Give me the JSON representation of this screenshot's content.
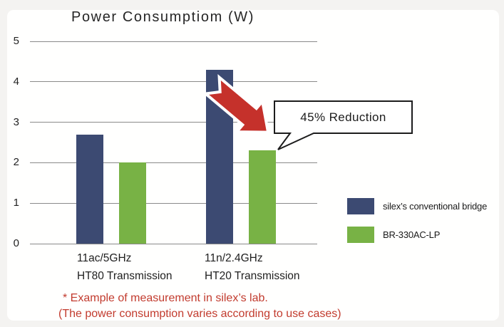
{
  "chart_data": {
    "type": "bar",
    "title": "Power Consumptiom (W)",
    "xlabel": "",
    "ylabel": "",
    "ylim": [
      0,
      5
    ],
    "yticks": [
      5,
      4,
      3,
      2,
      1,
      0
    ],
    "grid": true,
    "legend_position": "right",
    "categories": [
      {
        "line1": "11ac/5GHz",
        "line2": "HT80 Transmission"
      },
      {
        "line1": "11n/2.4GHz",
        "line2": "HT20 Transmission"
      }
    ],
    "series": [
      {
        "name": "silex’s conventional bridge",
        "color": "#3c4a72",
        "values": [
          2.7,
          4.3
        ]
      },
      {
        "name": "BR-330AC-LP",
        "color": "#78b245",
        "values": [
          2.0,
          2.3
        ]
      }
    ]
  },
  "annotation": {
    "callout_text": "45% Reduction",
    "arrow_color": "#c5312b",
    "callout_border_color": "#1c1c1c"
  },
  "footnote": {
    "line1": "* Example of measurement in silex’s lab.",
    "line2": "(The power consumption varies according to use cases)",
    "color": "#c23b2e"
  }
}
